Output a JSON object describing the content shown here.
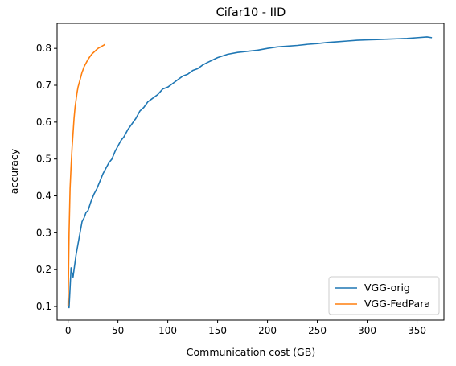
{
  "chart_data": {
    "type": "line",
    "title": "Cifar10 - IID",
    "xlabel": "Communication cost (GB)",
    "ylabel": "accuracy",
    "xlim": [
      -11,
      377
    ],
    "ylim": [
      0.063,
      0.868
    ],
    "xticks": [
      0,
      50,
      100,
      150,
      200,
      250,
      300,
      350
    ],
    "yticks": [
      0.1,
      0.2,
      0.3,
      0.4,
      0.5,
      0.6,
      0.7,
      0.8
    ],
    "grid": false,
    "legend_position": "lower-right",
    "series": [
      {
        "name": "VGG-orig",
        "color": "#1f77b4",
        "x": [
          0,
          1,
          2,
          3,
          4,
          5,
          6,
          7,
          8,
          10,
          12,
          14,
          16,
          18,
          20,
          23,
          26,
          29,
          32,
          35,
          38,
          41,
          44,
          47,
          50,
          53,
          56,
          60,
          64,
          68,
          72,
          76,
          80,
          85,
          90,
          95,
          100,
          105,
          110,
          115,
          120,
          125,
          130,
          135,
          140,
          150,
          160,
          170,
          180,
          190,
          200,
          210,
          220,
          230,
          240,
          250,
          260,
          270,
          280,
          290,
          300,
          310,
          320,
          330,
          340,
          350,
          360,
          365
        ],
        "y": [
          0.1,
          0.097,
          0.15,
          0.205,
          0.19,
          0.18,
          0.2,
          0.22,
          0.24,
          0.27,
          0.3,
          0.33,
          0.34,
          0.355,
          0.36,
          0.385,
          0.405,
          0.42,
          0.44,
          0.46,
          0.475,
          0.49,
          0.5,
          0.52,
          0.535,
          0.55,
          0.56,
          0.58,
          0.595,
          0.61,
          0.63,
          0.64,
          0.655,
          0.665,
          0.675,
          0.69,
          0.695,
          0.705,
          0.715,
          0.725,
          0.73,
          0.74,
          0.745,
          0.755,
          0.762,
          0.775,
          0.784,
          0.789,
          0.792,
          0.795,
          0.8,
          0.804,
          0.806,
          0.808,
          0.811,
          0.813,
          0.816,
          0.818,
          0.82,
          0.822,
          0.823,
          0.824,
          0.825,
          0.826,
          0.827,
          0.829,
          0.831,
          0.829
        ]
      },
      {
        "name": "VGG-FedPara",
        "color": "#ff7f0e",
        "x": [
          0,
          0.5,
          1,
          1.5,
          2,
          3,
          4,
          5,
          6,
          7,
          8,
          9,
          10,
          11,
          12,
          13,
          14,
          15,
          16,
          18,
          20,
          22,
          24,
          26,
          28,
          30,
          32,
          34,
          36,
          37
        ],
        "y": [
          0.1,
          0.2,
          0.3,
          0.36,
          0.42,
          0.48,
          0.53,
          0.57,
          0.61,
          0.64,
          0.66,
          0.68,
          0.695,
          0.705,
          0.715,
          0.725,
          0.735,
          0.742,
          0.75,
          0.76,
          0.77,
          0.778,
          0.785,
          0.79,
          0.795,
          0.8,
          0.803,
          0.806,
          0.809,
          0.811
        ]
      }
    ]
  }
}
